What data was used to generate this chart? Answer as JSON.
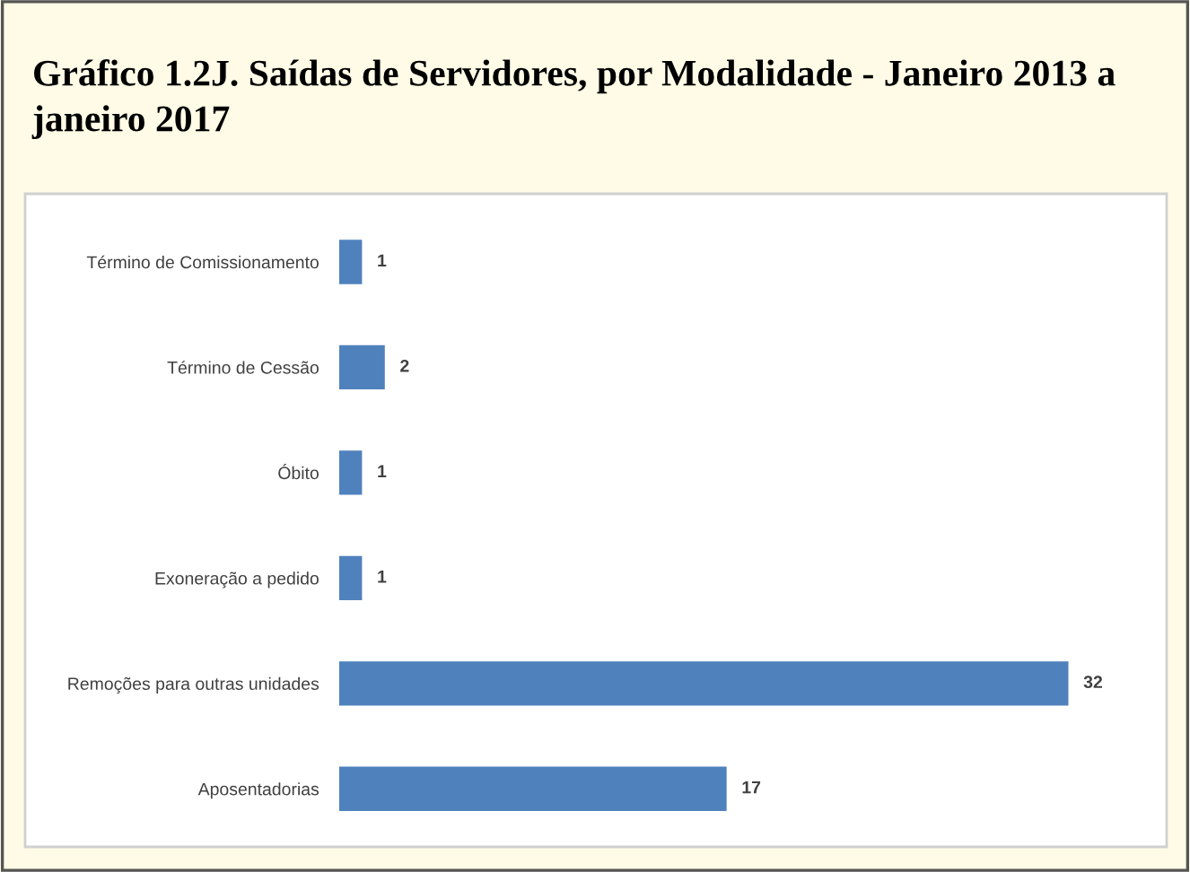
{
  "chart_data": {
    "type": "bar",
    "orientation": "horizontal",
    "title": "Gráfico 1.2J. Saídas de Servidores, por Modalidade - Janeiro 2013 a janeiro 2017",
    "categories": [
      "Término de Comissionamento",
      "Término de Cessão",
      "Óbito",
      "Exoneração a pedido",
      "Remoções para outras unidades",
      "Aposentadorias"
    ],
    "values": [
      1,
      2,
      1,
      1,
      32,
      17
    ],
    "color": "#4f81bd",
    "data_labels": true
  }
}
